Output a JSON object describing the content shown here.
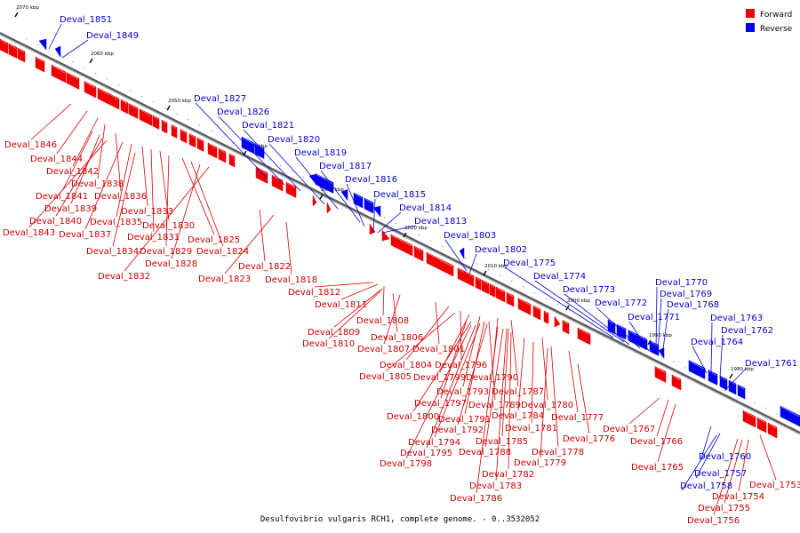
{
  "caption": "Desulfovibrio vulgaris RCH1, complete genome. - 0..3532052",
  "legend": {
    "forward_label": "Forward",
    "reverse_label": "Reverse",
    "forward_color": "#ee0000",
    "reverse_color": "#0000ee"
  },
  "ticks": [
    "2070 kbp",
    "2060 kbp",
    "2050 kbp",
    "2040 kbp",
    "2030 kbp",
    "2020 kbp",
    "2010 kbp",
    "2000 kbp",
    "1990 kbp",
    "1980 kbp"
  ],
  "forward_genes": [
    "Deval_1846",
    "Deval_1844",
    "Deval_1842",
    "Deval_1838",
    "Deval_1841",
    "Deval_1836",
    "Deval_1839",
    "Deval_1840",
    "Deval_1843",
    "Deval_1837",
    "Deval_1835",
    "Deval_1833",
    "Deval_1831",
    "Deval_1830",
    "Deval_1834",
    "Deval_1829",
    "Deval_1825",
    "Deval_1824",
    "Deval_1828",
    "Deval_1832",
    "Deval_1822",
    "Deval_1823",
    "Deval_1818",
    "Deval_1812",
    "Deval_1811",
    "Deval_1808",
    "Deval_1809",
    "Deval_1810",
    "Deval_1806",
    "Deval_1807",
    "Deval_1801",
    "Deval_1804",
    "Deval_1796",
    "Deval_1805",
    "Deval_1799",
    "Deval_1790",
    "Deval_1793",
    "Deval_1787",
    "Deval_1797",
    "Deval_1789",
    "Deval_1780",
    "Deval_1800",
    "Deval_1791",
    "Deval_1784",
    "Deval_1777",
    "Deval_1792",
    "Deval_1781",
    "Deval_1794",
    "Deval_1785",
    "Deval_1776",
    "Deval_1795",
    "Deval_1788",
    "Deval_1778",
    "Deval_1798",
    "Deval_1779",
    "Deval_1782",
    "Deval_1783",
    "Deval_1786",
    "Deval_1767",
    "Deval_1766",
    "Deval_1765",
    "Deval_1753",
    "Deval_1754",
    "Deval_1755",
    "Deval_1756"
  ],
  "reverse_genes": [
    "Deval_1851",
    "Deval_1849",
    "Deval_1827",
    "Deval_1826",
    "Deval_1821",
    "Deval_1820",
    "Deval_1819",
    "Deval_1817",
    "Deval_1816",
    "Deval_1815",
    "Deval_1814",
    "Deval_1813",
    "Deval_1803",
    "Deval_1802",
    "Deval_1775",
    "Deval_1774",
    "Deval_1773",
    "Deval_1772",
    "Deval_1771",
    "Deval_1770",
    "Deval_1769",
    "Deval_1768",
    "Deval_1763",
    "Deval_1762",
    "Deval_1764",
    "Deval_1761",
    "Deval_1760",
    "Deval_1757",
    "Deval_1758"
  ]
}
